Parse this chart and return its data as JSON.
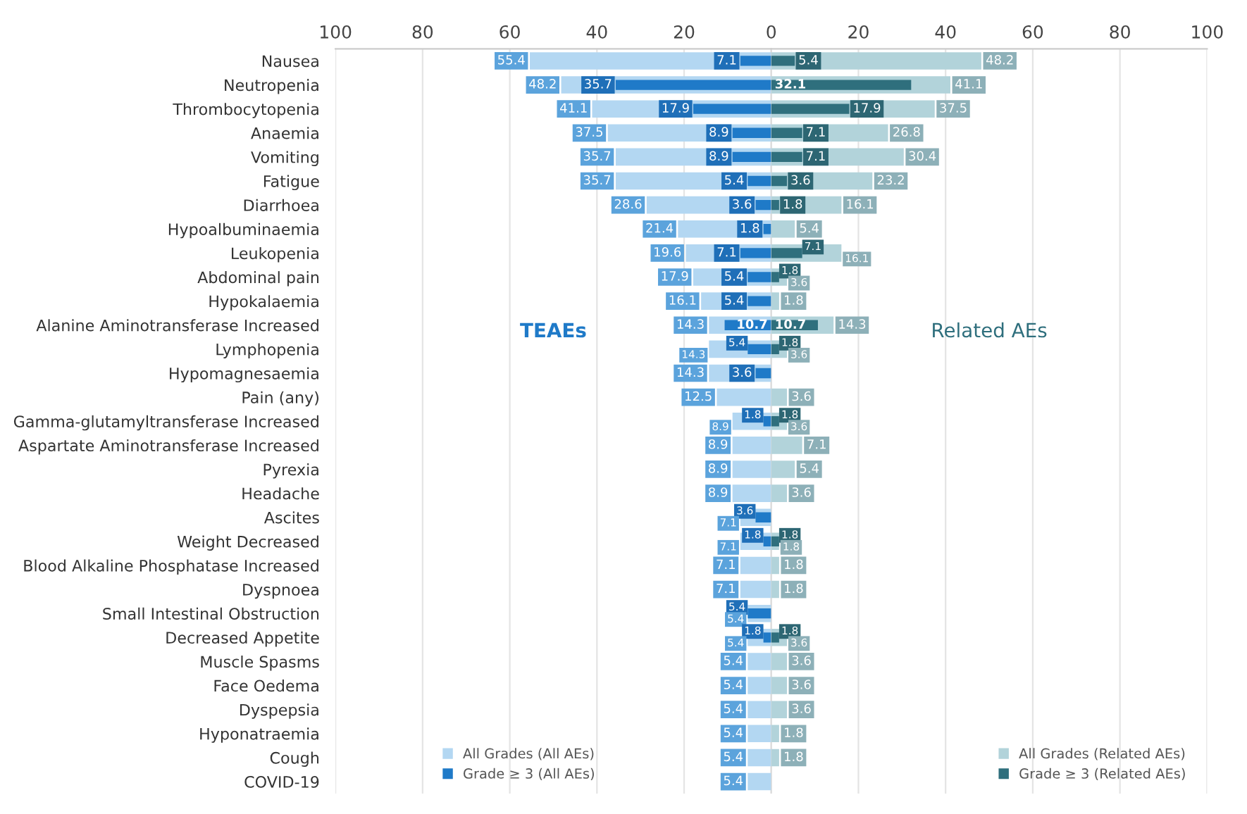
{
  "chart_data": [
    {
      "type": "bar",
      "orientation": "horizontal",
      "categories": [
        "Nausea",
        "Neutropenia",
        "Thrombocytopenia",
        "Anaemia",
        "Vomiting",
        "Fatigue",
        "Diarrhoea",
        "Hypoalbuminaemia",
        "Leukopenia",
        "Abdominal pain",
        "Hypokalaemia",
        "Alanine Aminotransferase Increased",
        "Lymphopenia",
        "Hypomagnesaemia",
        "Pain (any)",
        "Gamma-glutamyltransferase Increased",
        "Aspartate Aminotransferase Increased",
        "Pyrexia",
        "Headache",
        "Ascites",
        "Weight Decreased",
        "Blood Alkaline Phosphatase Increased",
        "Dyspnoea",
        "Small Intestinal Obstruction",
        "Decreased Appetite",
        "Muscle Spasms",
        "Face Oedema",
        "Dyspepsia",
        "Hyponatraemia",
        "Cough",
        "COVID-19"
      ],
      "series": [
        {
          "name": "All Grades (All AEs)",
          "color": "#b3d7f2",
          "values": [
            55.4,
            48.2,
            41.1,
            37.5,
            35.7,
            35.7,
            28.6,
            21.4,
            19.6,
            17.9,
            16.1,
            14.3,
            14.3,
            14.3,
            12.5,
            8.9,
            8.9,
            8.9,
            8.9,
            7.1,
            7.1,
            7.1,
            7.1,
            5.4,
            5.4,
            5.4,
            5.4,
            5.4,
            5.4,
            5.4,
            5.4
          ]
        },
        {
          "name": "Grade ≥ 3 (All AEs)",
          "color": "#1f7ac8",
          "values": [
            7.1,
            35.7,
            17.9,
            8.9,
            8.9,
            5.4,
            3.6,
            1.8,
            7.1,
            5.4,
            5.4,
            10.7,
            5.4,
            3.6,
            null,
            1.8,
            null,
            null,
            null,
            3.6,
            1.8,
            null,
            null,
            5.4,
            1.8,
            null,
            null,
            null,
            null,
            null,
            null
          ]
        }
      ],
      "data_labels": true,
      "xlim": [
        100,
        0
      ],
      "xticks": [
        100,
        80,
        60,
        40,
        20
      ],
      "annotations": [
        "TEAEs"
      ],
      "grid": "x",
      "legend": "bottom left"
    },
    {
      "type": "bar",
      "orientation": "horizontal",
      "categories": [
        null,
        null,
        null,
        null,
        null,
        null,
        null,
        null,
        null,
        null,
        null,
        null,
        null,
        null,
        null,
        null,
        null,
        null,
        null,
        null,
        null,
        null,
        null,
        null,
        null,
        null,
        null,
        null,
        null,
        null,
        null
      ],
      "series": [
        {
          "name": "All Grades (Related AEs)",
          "color": "#b2d3da",
          "values": [
            48.2,
            41.1,
            37.5,
            26.8,
            30.4,
            23.2,
            16.1,
            5.4,
            16.1,
            3.6,
            1.8,
            14.3,
            3.6,
            null,
            3.6,
            3.6,
            7.1,
            5.4,
            3.6,
            null,
            1.8,
            1.8,
            1.8,
            null,
            3.6,
            3.6,
            3.6,
            3.6,
            1.8,
            1.8,
            null
          ]
        },
        {
          "name": "Grade ≥ 3 (Related AEs)",
          "color": "#2f6f7d",
          "values": [
            5.4,
            32.1,
            17.9,
            7.1,
            7.1,
            3.6,
            1.8,
            null,
            7.1,
            1.8,
            null,
            10.7,
            1.8,
            null,
            null,
            1.8,
            null,
            null,
            null,
            null,
            1.8,
            null,
            null,
            null,
            1.8,
            null,
            null,
            null,
            null,
            null,
            null
          ]
        }
      ],
      "data_labels": true,
      "xlim": [
        0,
        100
      ],
      "xticks": [
        0,
        20,
        40,
        60,
        80,
        100
      ],
      "annotations": [
        "Related AEs"
      ],
      "grid": "x",
      "legend": "bottom right"
    }
  ]
}
